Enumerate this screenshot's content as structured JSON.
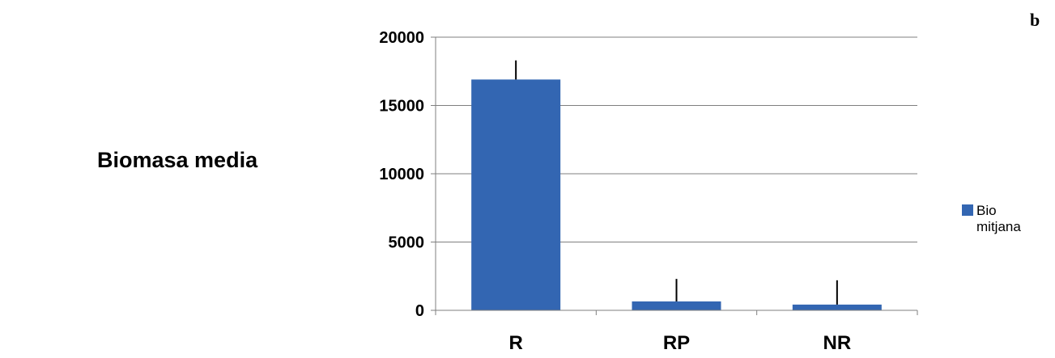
{
  "panel_label": "b",
  "chart_data": {
    "type": "bar",
    "title": "",
    "xlabel": "",
    "ylabel": "Biomasa media",
    "categories": [
      "R",
      "RP",
      "NR"
    ],
    "series": [
      {
        "name": "Bio mitjana",
        "values": [
          16900,
          650,
          420
        ],
        "error_upper": [
          18300,
          2300,
          2200
        ],
        "color": "#3366b2"
      }
    ],
    "ylim": [
      0,
      20000
    ],
    "yticks": [
      "0",
      "5000",
      "10000",
      "15000",
      "20000"
    ],
    "grid": true,
    "legend_position": "right"
  },
  "legend": {
    "line1": "Bio",
    "line2": "mitjana"
  }
}
